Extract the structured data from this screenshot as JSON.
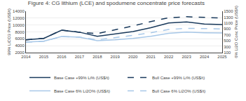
{
  "chart_data": {
    "type": "line",
    "title": "Figure 4: CG lithium (LCE) and spodumene concentrate price forecasts",
    "x": [
      2014,
      2015,
      2016,
      2017,
      2018,
      2019,
      2020,
      2021,
      2022,
      2023,
      2024,
      2025
    ],
    "xlim": [
      2014,
      2025
    ],
    "xticks": [
      2014,
      2015,
      2016,
      2017,
      2018,
      2019,
      2020,
      2021,
      2022,
      2023,
      2024,
      2025
    ],
    "ylabel": "99% LiCO3 Price (US$/t)",
    "y2label": "6% Li2O Conc Price (US$/t)",
    "ylim": [
      2000,
      14000
    ],
    "yticks": [
      2000,
      4000,
      6000,
      8000,
      10000,
      12000,
      14000
    ],
    "y2lim": [
      100,
      1500
    ],
    "y2ticks": [
      100,
      300,
      500,
      700,
      900,
      1100,
      1300,
      1500
    ],
    "grid": true,
    "legend": "lower left",
    "series": [
      {
        "name": "Base Case +99% Li% (US$/t)",
        "color": "#1a3a5c",
        "line_style": "solid",
        "values": [
          5700,
          6100,
          8500,
          7900,
          6700,
          7400,
          8100,
          9200,
          10600,
          10900,
          10300,
          10100
        ]
      },
      {
        "name": "Bull Case +99% Li% (US$/t)",
        "color": "#1a3a5c",
        "line_style": "dashed",
        "values": [
          5700,
          6100,
          8500,
          7900,
          7500,
          8600,
          9700,
          11000,
          12100,
          12400,
          12200,
          12000
        ]
      },
      {
        "name": "Base Case 6% Li2O% (US$/t)",
        "color": "#a8c8e8",
        "line_style": "solid",
        "axis": "y2",
        "values": [
          450,
          480,
          640,
          620,
          500,
          530,
          580,
          650,
          750,
          790,
          770,
          760
        ]
      },
      {
        "name": "Bull Case 6% Li2O% (US$/t)",
        "color": "#a8c8e8",
        "line_style": "dashed",
        "axis": "y2",
        "values": [
          450,
          480,
          640,
          620,
          530,
          600,
          680,
          770,
          880,
          920,
          910,
          900
        ]
      }
    ]
  }
}
